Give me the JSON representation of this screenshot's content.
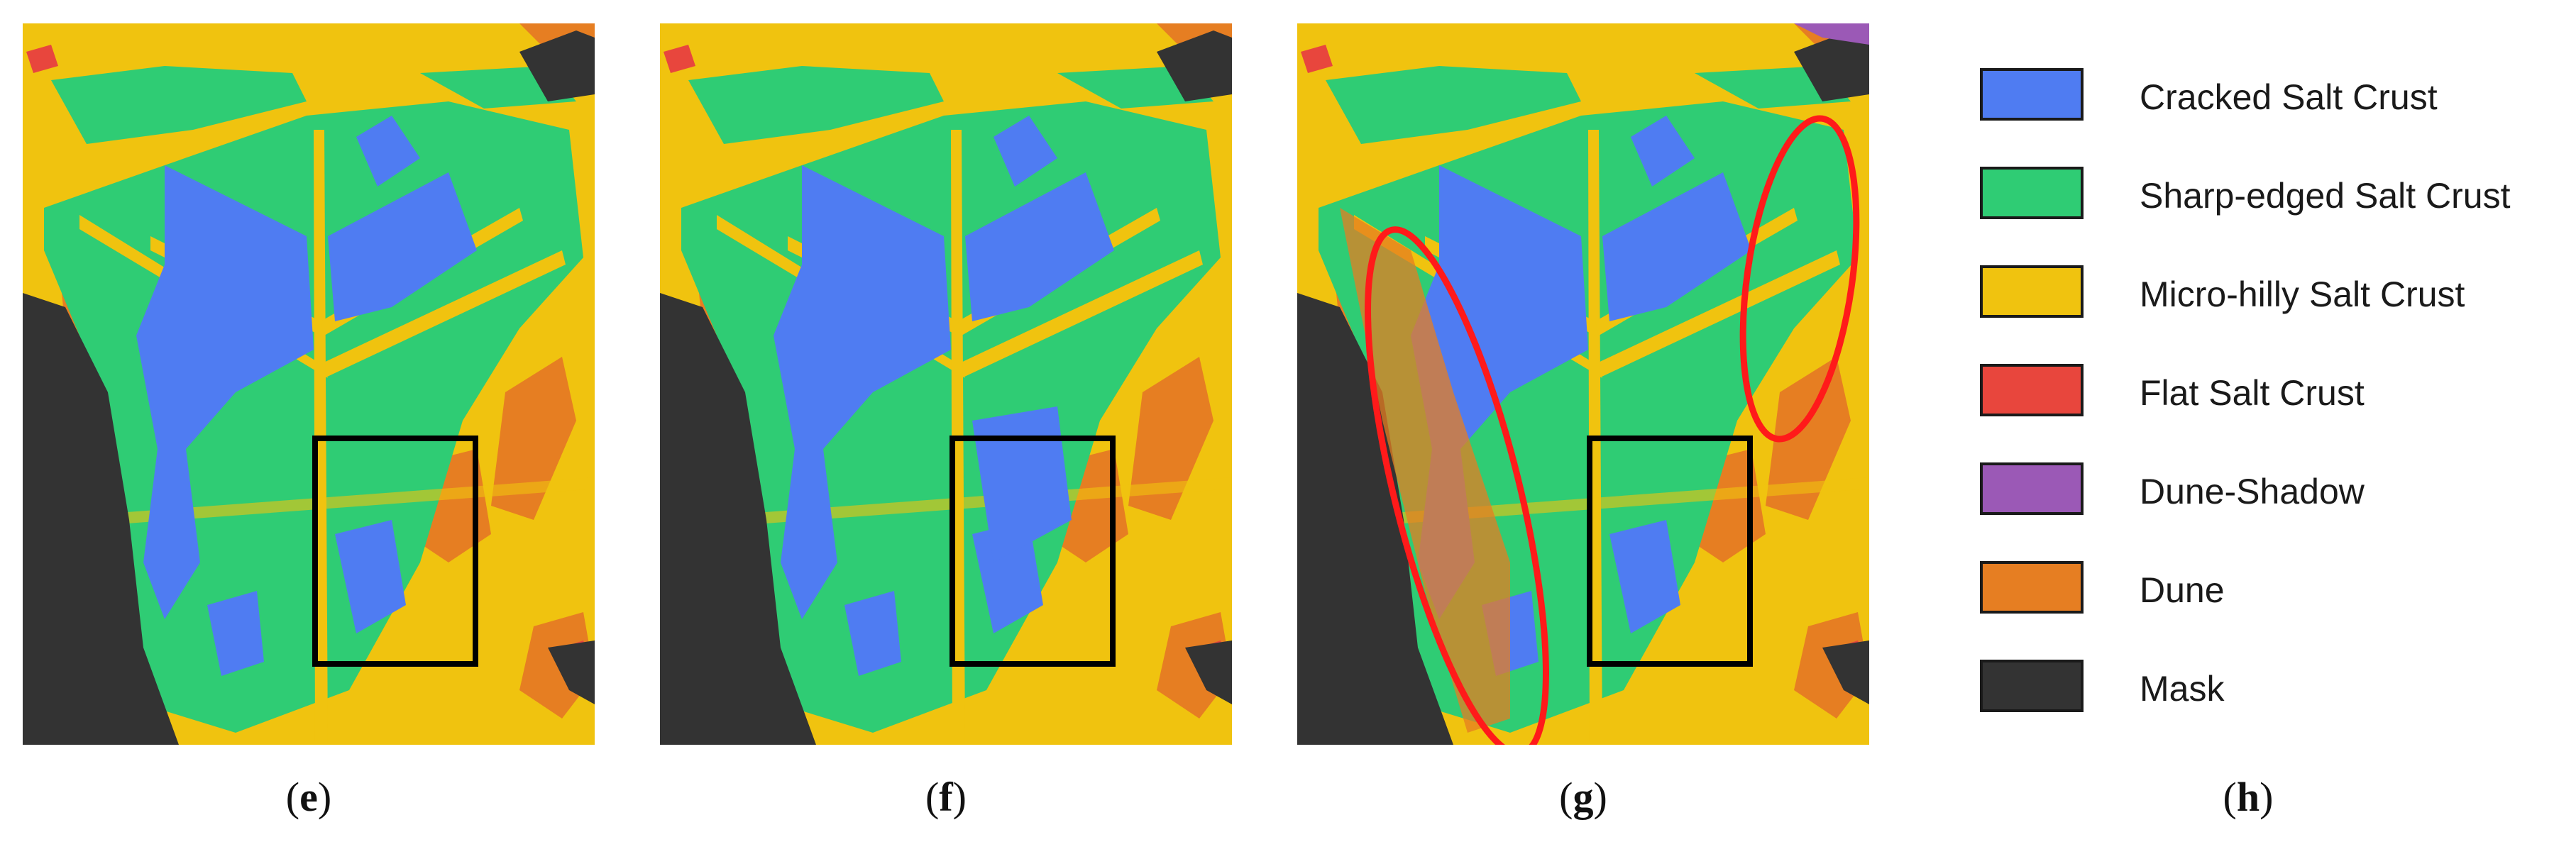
{
  "captions": [
    "e",
    "f",
    "g",
    "h"
  ],
  "legend": [
    {
      "label": "Cracked Salt Crust",
      "color": "#4f7cf2"
    },
    {
      "label": "Sharp-edged Salt Crust",
      "color": "#2fcc74"
    },
    {
      "label": "Micro-hilly Salt Crust",
      "color": "#f0c30f"
    },
    {
      "label": "Flat Salt Crust",
      "color": "#e8463d"
    },
    {
      "label": "Dune-Shadow",
      "color": "#9b59b6"
    },
    {
      "label": "Dune",
      "color": "#e67e22"
    },
    {
      "label": "Mask",
      "color": "#333333"
    }
  ],
  "highlight_colors": {
    "box": "#000000",
    "ellipse": "#ff1a1a"
  }
}
